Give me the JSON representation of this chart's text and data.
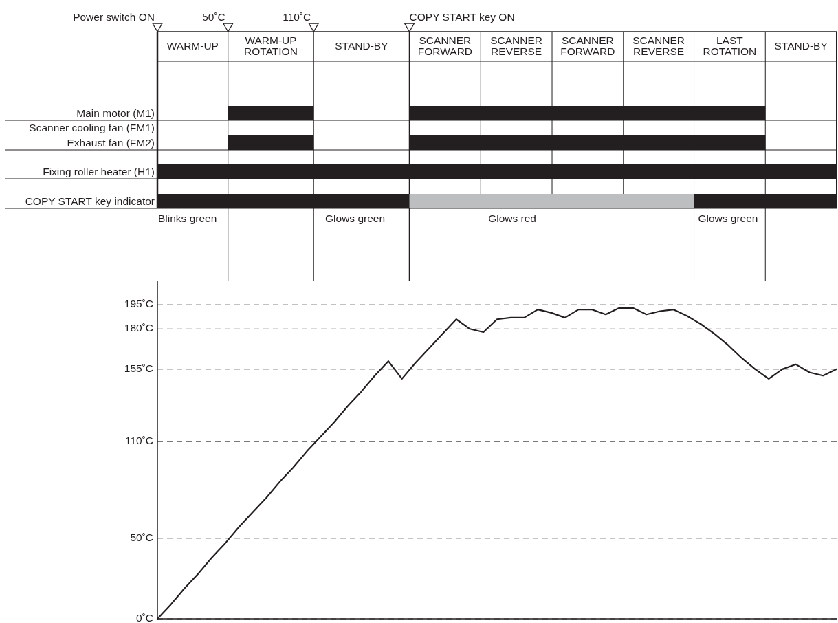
{
  "chart_data": [
    {
      "type": "other",
      "annotations": [
        "WARM-UP",
        "WARM-UP\nROTATION",
        "STAND-BY",
        "SCANNER\nFORWARD",
        "SCANNER\nREVERSE",
        "SCANNER\nFORWARD",
        "SCANNER\nREVERSE",
        "LAST\nROTATION",
        "STAND-BY",
        "Power switch ON",
        "50˚C",
        "110˚C",
        "COPY START key ON",
        "Main motor (M1)",
        "Scanner cooling fan (FM1)",
        "Exhaust fan (FM2)",
        "Fixing roller heater (H1)",
        "COPY START key indicator",
        "Blinks green",
        "Glows green",
        "Glows red",
        "Glows green"
      ]
    },
    {
      "type": "line",
      "ylim": [
        0,
        210
      ],
      "tick_labels": "y",
      "grid": "y",
      "yticks": [
        {
          "value": 0,
          "label": "0˚C"
        },
        {
          "value": 50,
          "label": "50˚C"
        },
        {
          "value": 110,
          "label": "110˚C"
        },
        {
          "value": 155,
          "label": "155˚C"
        },
        {
          "value": 180,
          "label": "180˚C"
        },
        {
          "value": 195,
          "label": "195˚C"
        }
      ],
      "categories": [
        null,
        null,
        null,
        null,
        null,
        null,
        null,
        null,
        null,
        null,
        null,
        null,
        null,
        null,
        null,
        null,
        null,
        null,
        null,
        null,
        null,
        null,
        null,
        null,
        null,
        null,
        null,
        null,
        null,
        null,
        null,
        null,
        null,
        null,
        null,
        null,
        null,
        null,
        null,
        null,
        null,
        null,
        null,
        null,
        null,
        null,
        null,
        null,
        null,
        null,
        null
      ],
      "series": [
        {
          "color": "#231f20",
          "values": [
            0,
            9,
            19,
            28,
            38,
            47,
            57,
            66,
            75,
            85,
            94,
            104,
            113,
            122,
            132,
            141,
            151,
            160,
            149,
            159,
            168,
            177,
            186,
            180,
            178,
            186,
            187,
            187,
            192,
            190,
            187,
            192,
            192,
            189,
            193,
            193,
            189,
            191,
            192,
            188,
            183,
            177,
            170,
            162,
            155,
            149,
            155,
            158,
            153,
            151,
            155
          ]
        }
      ]
    }
  ]
}
